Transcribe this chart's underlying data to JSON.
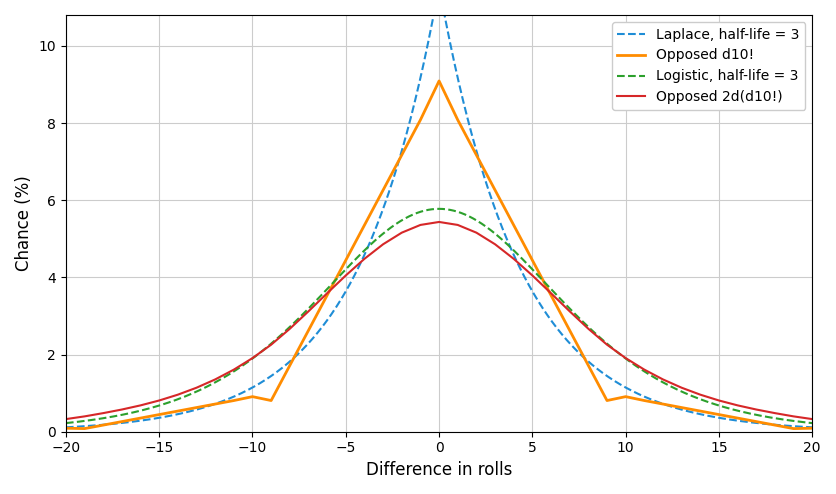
{
  "title": "",
  "xlabel": "Difference in rolls",
  "ylabel": "Chance (%)",
  "xlim": [
    -20,
    20
  ],
  "ylim": [
    0,
    10.8
  ],
  "legend_labels": [
    "Laplace, half-life = 3",
    "Opposed d10!",
    "Logistic, half-life = 3",
    "Opposed 2d(d10!)"
  ],
  "legend_colors": [
    "#1f8dd6",
    "#ff8c00",
    "#2ca02c",
    "#d62728"
  ],
  "legend_styles": [
    "--",
    "-",
    "--",
    "-"
  ],
  "background_color": "#ffffff",
  "grid_color": "#cccccc",
  "half_life": 3
}
